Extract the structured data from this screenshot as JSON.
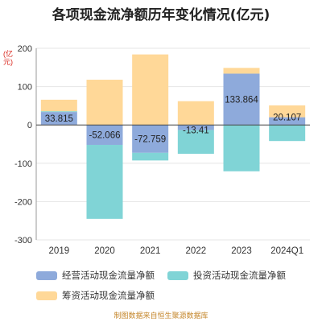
{
  "chart_data": {
    "type": "bar",
    "stacked": true,
    "title": "各项现金流净额历年变化情况(亿元)",
    "ylabel": "(亿元)",
    "categories": [
      "2019",
      "2020",
      "2021",
      "2022",
      "2023",
      "2024Q1"
    ],
    "ylim": [
      -300,
      200
    ],
    "yticks": [
      -300,
      -200,
      -100,
      0,
      100,
      200
    ],
    "grid": "horizontal",
    "legend_position": "bottom",
    "series": [
      {
        "name": "经营活动现金流量净额",
        "color": "#8eaadb",
        "values": [
          33.815,
          -52.066,
          -72.759,
          -13.41,
          133.864,
          20.107
        ],
        "labels": [
          "33.815",
          "-52.066",
          "-72.759",
          "-13.41",
          "133.864",
          "20.107"
        ]
      },
      {
        "name": "投资活动现金流量净额",
        "color": "#80d4d6",
        "values": [
          2,
          -193,
          -20,
          -62,
          -121,
          -42
        ]
      },
      {
        "name": "筹资活动现金流量净额",
        "color": "#ffd898",
        "values": [
          30,
          118,
          184,
          62,
          15,
          31
        ]
      }
    ]
  },
  "footer": "制图数据来自恒生聚源数据库"
}
